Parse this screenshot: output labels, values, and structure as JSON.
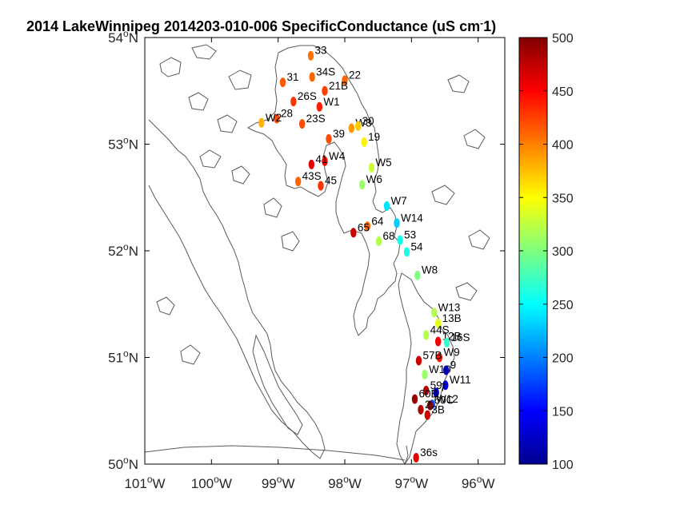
{
  "title": "2014 LakeWinnipeg 2014203-010-006 SpecificConductance (uS cm",
  "title_superscript": "-",
  "title_tail": "1)",
  "map": {
    "lon_range": [
      -101,
      -95.6
    ],
    "lat_range": [
      50,
      54
    ],
    "lon_ticks": [
      {
        "value": -101,
        "label": "101",
        "unit": "W"
      },
      {
        "value": -100,
        "label": "100",
        "unit": "W"
      },
      {
        "value": -99,
        "label": "99",
        "unit": "W"
      },
      {
        "value": -98,
        "label": "98",
        "unit": "W"
      },
      {
        "value": -97,
        "label": "97",
        "unit": "W"
      },
      {
        "value": -96,
        "label": "96",
        "unit": "W"
      }
    ],
    "lat_ticks": [
      {
        "value": 50,
        "label": "50",
        "unit": "N"
      },
      {
        "value": 51,
        "label": "51",
        "unit": "N"
      },
      {
        "value": 52,
        "label": "52",
        "unit": "N"
      },
      {
        "value": 53,
        "label": "53",
        "unit": "N"
      },
      {
        "value": 54,
        "label": "54",
        "unit": "N"
      }
    ],
    "degree_symbol": "o",
    "frame_color": "#000000",
    "coast_color": "#5a5a5a"
  },
  "colorbar": {
    "min": 100,
    "max": 500,
    "ticks": [
      {
        "value": 100,
        "label": "100"
      },
      {
        "value": 150,
        "label": "150"
      },
      {
        "value": 200,
        "label": "200"
      },
      {
        "value": 250,
        "label": "250"
      },
      {
        "value": 300,
        "label": "300"
      },
      {
        "value": 350,
        "label": "350"
      },
      {
        "value": 400,
        "label": "400"
      },
      {
        "value": 450,
        "label": "450"
      },
      {
        "value": 500,
        "label": "500"
      }
    ],
    "colormap": "jet"
  },
  "chart_data": {
    "type": "scatter",
    "x_unit": "longitude (deg)",
    "y_unit": "latitude (deg)",
    "stations": [
      {
        "name": "33",
        "lon": -98.51,
        "lat": 53.83,
        "value": 405
      },
      {
        "name": "34S",
        "lon": -98.49,
        "lat": 53.63,
        "value": 410
      },
      {
        "name": "31",
        "lon": -98.93,
        "lat": 53.58,
        "value": 415
      },
      {
        "name": "22",
        "lon": -98.0,
        "lat": 53.6,
        "value": 410
      },
      {
        "name": "21B",
        "lon": -98.3,
        "lat": 53.5,
        "value": 425
      },
      {
        "name": "26S",
        "lon": -98.77,
        "lat": 53.4,
        "value": 430
      },
      {
        "name": "W1",
        "lon": -98.38,
        "lat": 53.35,
        "value": 440
      },
      {
        "name": "28",
        "lon": -99.02,
        "lat": 53.24,
        "value": 420
      },
      {
        "name": "W2",
        "lon": -99.25,
        "lat": 53.2,
        "value": 380
      },
      {
        "name": "23S",
        "lon": -98.64,
        "lat": 53.19,
        "value": 420
      },
      {
        "name": "W3",
        "lon": -97.9,
        "lat": 53.15,
        "value": 390
      },
      {
        "name": "30",
        "lon": -97.8,
        "lat": 53.17,
        "value": 370
      },
      {
        "name": "39",
        "lon": -98.24,
        "lat": 53.05,
        "value": 420
      },
      {
        "name": "19",
        "lon": -97.71,
        "lat": 53.02,
        "value": 355
      },
      {
        "name": "W4",
        "lon": -98.3,
        "lat": 52.84,
        "value": 450
      },
      {
        "name": "41",
        "lon": -98.5,
        "lat": 52.81,
        "value": 460
      },
      {
        "name": "W5",
        "lon": -97.6,
        "lat": 52.78,
        "value": 330
      },
      {
        "name": "43S",
        "lon": -98.7,
        "lat": 52.65,
        "value": 410
      },
      {
        "name": "45",
        "lon": -98.36,
        "lat": 52.61,
        "value": 430
      },
      {
        "name": "W6",
        "lon": -97.74,
        "lat": 52.62,
        "value": 310
      },
      {
        "name": "W7",
        "lon": -97.37,
        "lat": 52.42,
        "value": 240
      },
      {
        "name": "W14",
        "lon": -97.22,
        "lat": 52.26,
        "value": 230
      },
      {
        "name": "64",
        "lon": -97.66,
        "lat": 52.23,
        "value": 410
      },
      {
        "name": "65",
        "lon": -97.87,
        "lat": 52.17,
        "value": 470
      },
      {
        "name": "53",
        "lon": -97.17,
        "lat": 52.1,
        "value": 255
      },
      {
        "name": "68",
        "lon": -97.49,
        "lat": 52.09,
        "value": 320
      },
      {
        "name": "54",
        "lon": -97.07,
        "lat": 51.99,
        "value": 260
      },
      {
        "name": "W8",
        "lon": -96.91,
        "lat": 51.77,
        "value": 300
      },
      {
        "name": "W13",
        "lon": -96.66,
        "lat": 51.42,
        "value": 320
      },
      {
        "name": "13B",
        "lon": -96.6,
        "lat": 51.32,
        "value": 340
      },
      {
        "name": "44S",
        "lon": -96.78,
        "lat": 51.21,
        "value": 320
      },
      {
        "name": "12B",
        "lon": -96.6,
        "lat": 51.15,
        "value": 455
      },
      {
        "name": "16S",
        "lon": -96.47,
        "lat": 51.14,
        "value": 270
      },
      {
        "name": "W9",
        "lon": -96.58,
        "lat": 51.0,
        "value": 440
      },
      {
        "name": "57B",
        "lon": -96.89,
        "lat": 50.97,
        "value": 470
      },
      {
        "name": "W10",
        "lon": -96.8,
        "lat": 50.84,
        "value": 310
      },
      {
        "name": "9",
        "lon": -96.48,
        "lat": 50.88,
        "value": 120
      },
      {
        "name": "W11",
        "lon": -96.49,
        "lat": 50.74,
        "value": 140
      },
      {
        "name": "59",
        "lon": -96.78,
        "lat": 50.69,
        "value": 480
      },
      {
        "name": "7",
        "lon": -96.63,
        "lat": 50.67,
        "value": 130
      },
      {
        "name": "60B",
        "lon": -96.95,
        "lat": 50.61,
        "value": 490
      },
      {
        "name": "W12",
        "lon": -96.69,
        "lat": 50.56,
        "value": 180
      },
      {
        "name": "60C",
        "lon": -96.72,
        "lat": 50.55,
        "value": 500
      },
      {
        "name": "2",
        "lon": -96.86,
        "lat": 50.51,
        "value": 480
      },
      {
        "name": "3B",
        "lon": -96.76,
        "lat": 50.46,
        "value": 470
      },
      {
        "name": "36s",
        "lon": -96.93,
        "lat": 50.06,
        "value": 460
      }
    ]
  }
}
